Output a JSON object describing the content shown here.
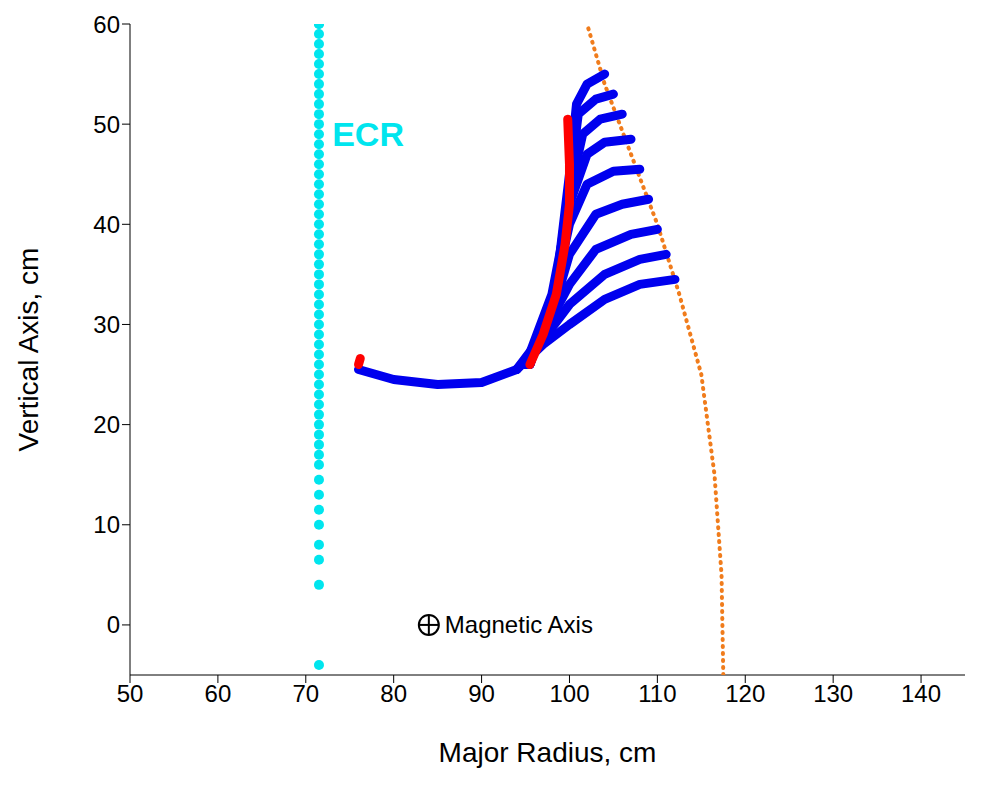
{
  "chart_data": {
    "type": "scatter",
    "x_label": "Major Radius, cm",
    "y_label": "Vertical Axis, cm",
    "xlim": [
      50,
      145
    ],
    "xticks": [
      50,
      60,
      70,
      80,
      90,
      100,
      110,
      120,
      130,
      140
    ],
    "ylim": [
      -5,
      60
    ],
    "yticks": [
      0,
      10,
      20,
      30,
      40,
      50,
      60
    ],
    "grid": false,
    "series": [
      {
        "color": "#00e5ee",
        "marker": "circle",
        "line_style": "none",
        "x": [
          71.5,
          71.5,
          71.5,
          71.5,
          71.5,
          71.5,
          71.5,
          71.5,
          71.5,
          71.5,
          71.5,
          71.5,
          71.5,
          71.5,
          71.5,
          71.5,
          71.5,
          71.5,
          71.5,
          71.5,
          71.5,
          71.5,
          71.5,
          71.5,
          71.5,
          71.5,
          71.5,
          71.5,
          71.5,
          71.5,
          71.5,
          71.5,
          71.5,
          71.5,
          71.5,
          71.5,
          71.5,
          71.5,
          71.5,
          71.5,
          71.5,
          71.5,
          71.5,
          71.5,
          71.5,
          71.5,
          71.5,
          71.5,
          71.5,
          71.5,
          71.5,
          71.5,
          71.5,
          71.5
        ],
        "values": [
          -4,
          4,
          6.5,
          8,
          10,
          11.5,
          13,
          14.5,
          16,
          17,
          18,
          19,
          20,
          21,
          22,
          23,
          24,
          25,
          26,
          27,
          28,
          29,
          30,
          31,
          32,
          33,
          34,
          35,
          36,
          37,
          38,
          39,
          40,
          41,
          42,
          43,
          44,
          45,
          46,
          47,
          48,
          49,
          50,
          51,
          52,
          53,
          54,
          55,
          56,
          57,
          58,
          59,
          60,
          60
        ]
      },
      {
        "color": "#f07c1c",
        "marker": "none",
        "line_style": "dotted",
        "x": [
          117.5,
          117.3,
          116.5,
          115,
          112.5,
          110,
          107,
          104,
          102
        ],
        "values": [
          -5,
          5,
          15,
          25,
          33,
          40,
          47,
          54,
          60
        ]
      },
      {
        "color": "#0000ee",
        "marker": "none",
        "line_style": "solid",
        "x": [
          76,
          80,
          85,
          90,
          94,
          97,
          100,
          104,
          108,
          112
        ],
        "values": [
          25.5,
          24.5,
          24,
          24.2,
          25.5,
          28,
          30,
          32.5,
          34,
          34.5
        ]
      },
      {
        "color": "#0000ee",
        "marker": "none",
        "line_style": "solid",
        "x": [
          94,
          97,
          100,
          104,
          108,
          111
        ],
        "values": [
          25.5,
          28.5,
          32,
          35,
          36.5,
          37
        ]
      },
      {
        "color": "#0000ee",
        "marker": "none",
        "line_style": "solid",
        "x": [
          94,
          97,
          100,
          103,
          107,
          110
        ],
        "values": [
          25.5,
          29,
          34,
          37.5,
          39,
          39.5
        ]
      },
      {
        "color": "#0000ee",
        "marker": "none",
        "line_style": "solid",
        "x": [
          95,
          98,
          100,
          103,
          106,
          109
        ],
        "values": [
          26,
          31,
          37,
          41,
          42,
          42.5
        ]
      },
      {
        "color": "#0000ee",
        "marker": "none",
        "line_style": "solid",
        "x": [
          95,
          98,
          100,
          102,
          105,
          108
        ],
        "values": [
          26,
          32,
          40,
          44,
          45.3,
          45.5
        ]
      },
      {
        "color": "#0000ee",
        "marker": "none",
        "line_style": "solid",
        "x": [
          95,
          98,
          100,
          102,
          104,
          107
        ],
        "values": [
          26,
          33,
          42,
          47,
          48.2,
          48.5
        ]
      },
      {
        "color": "#0000ee",
        "marker": "none",
        "line_style": "solid",
        "x": [
          95.5,
          98.5,
          100,
          101.5,
          103.5,
          106
        ],
        "values": [
          26,
          34,
          43,
          49,
          50.5,
          51
        ]
      },
      {
        "color": "#0000ee",
        "marker": "none",
        "line_style": "solid",
        "x": [
          95.5,
          98.5,
          100,
          101,
          103,
          105
        ],
        "values": [
          26,
          34,
          44,
          51,
          52.5,
          53
        ]
      },
      {
        "color": "#0000ee",
        "marker": "none",
        "line_style": "solid",
        "x": [
          95.5,
          98.5,
          100,
          100.8,
          102,
          104
        ],
        "values": [
          26,
          34,
          45,
          52,
          54,
          55
        ]
      },
      {
        "color": "#ff0000",
        "marker": "none",
        "line_style": "solid",
        "x": [
          76,
          76.2
        ],
        "values": [
          26,
          26.6
        ]
      },
      {
        "color": "#ff0000",
        "marker": "none",
        "line_style": "solid",
        "x": [
          95.5,
          97,
          98.5,
          99.5,
          100,
          100,
          99.8
        ],
        "values": [
          26,
          29,
          33,
          38,
          42,
          46,
          50.5
        ]
      }
    ],
    "annotations": [
      {
        "text": "ECR",
        "x": 73,
        "y": 49,
        "color": "#00e5ee"
      },
      {
        "text": "Magnetic Axis",
        "x": 84,
        "y": 0,
        "marker": "circle-plus",
        "color": "#000000"
      }
    ]
  }
}
